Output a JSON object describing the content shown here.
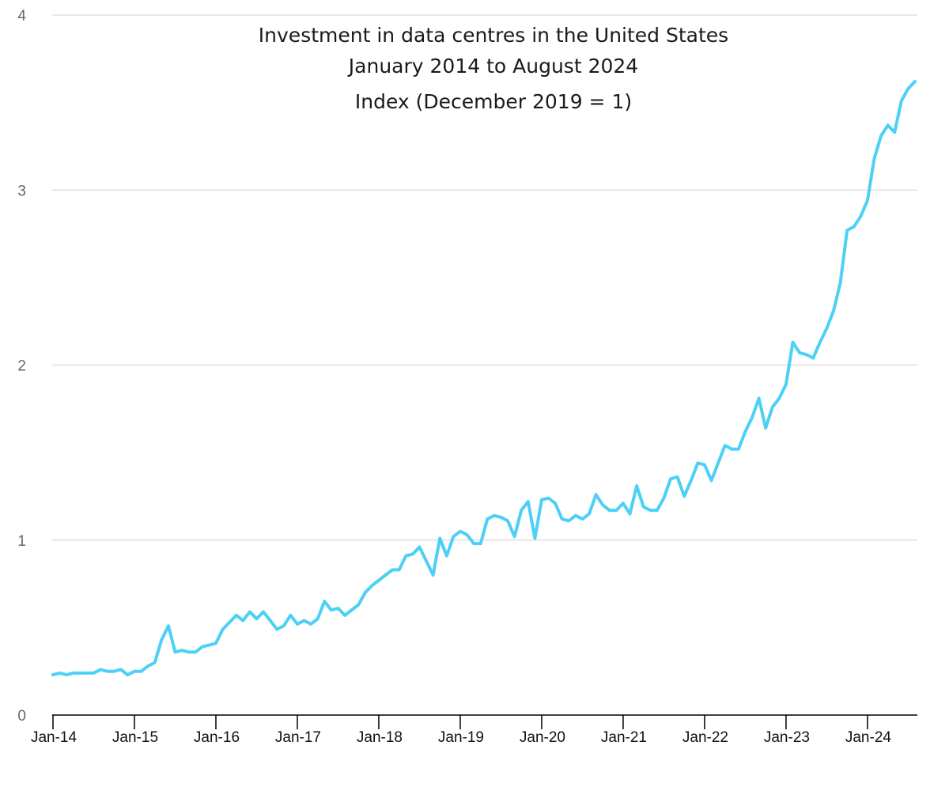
{
  "chart_data": {
    "type": "line",
    "title": "Investment in data centres in the United States",
    "subtitle_lines": [
      "January 2014 to August 2024",
      "Index (December 2019 = 1)"
    ],
    "xlabel": "",
    "ylabel": "",
    "ylim": [
      0,
      4
    ],
    "yticks": [
      0,
      1,
      2,
      3,
      4
    ],
    "x_tick_labels": [
      "Jan-14",
      "Jan-15",
      "Jan-16",
      "Jan-17",
      "Jan-18",
      "Jan-19",
      "Jan-20",
      "Jan-21",
      "Jan-22",
      "Jan-23",
      "Jan-24"
    ],
    "x_start": "Jan-14",
    "x_end": "Aug-24",
    "grid": true,
    "legend": "none",
    "series": [
      {
        "name": "Investment in data centres index",
        "color": "#4dd0f5",
        "values": [
          0.23,
          0.24,
          0.23,
          0.24,
          0.24,
          0.24,
          0.24,
          0.26,
          0.25,
          0.25,
          0.26,
          0.23,
          0.25,
          0.25,
          0.28,
          0.3,
          0.43,
          0.51,
          0.36,
          0.37,
          0.36,
          0.36,
          0.39,
          0.4,
          0.41,
          0.49,
          0.53,
          0.57,
          0.54,
          0.59,
          0.55,
          0.59,
          0.54,
          0.49,
          0.51,
          0.57,
          0.52,
          0.54,
          0.52,
          0.55,
          0.65,
          0.6,
          0.61,
          0.57,
          0.6,
          0.63,
          0.7,
          0.74,
          0.77,
          0.8,
          0.83,
          0.83,
          0.91,
          0.92,
          0.96,
          0.88,
          0.8,
          1.01,
          0.91,
          1.02,
          1.05,
          1.03,
          0.98,
          0.98,
          1.12,
          1.14,
          1.13,
          1.11,
          1.02,
          1.17,
          1.22,
          1.01,
          1.23,
          1.24,
          1.21,
          1.12,
          1.11,
          1.14,
          1.12,
          1.15,
          1.26,
          1.2,
          1.17,
          1.17,
          1.21,
          1.15,
          1.31,
          1.19,
          1.17,
          1.17,
          1.24,
          1.35,
          1.36,
          1.25,
          1.34,
          1.44,
          1.43,
          1.34,
          1.44,
          1.54,
          1.52,
          1.52,
          1.62,
          1.7,
          1.81,
          1.64,
          1.76,
          1.81,
          1.89,
          2.13,
          2.07,
          2.06,
          2.04,
          2.13,
          2.21,
          2.31,
          2.47,
          2.77,
          2.79,
          2.85,
          2.94,
          3.18,
          3.31,
          3.37,
          3.33,
          3.51,
          3.58,
          3.62
        ]
      }
    ]
  }
}
